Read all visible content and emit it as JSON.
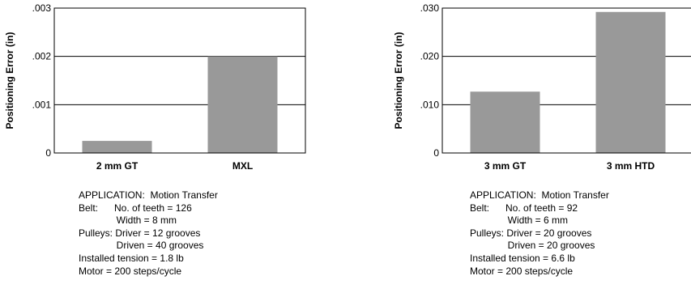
{
  "chart_data": [
    {
      "type": "bar",
      "title": "",
      "xlabel": "",
      "ylabel": "Positioning Error (in)",
      "categories": [
        "2 mm GT",
        "MXL"
      ],
      "values": [
        0.00025,
        0.002
      ],
      "ylim": [
        0,
        0.003
      ],
      "yticks": [
        0,
        0.001,
        0.002,
        0.003
      ],
      "ytick_labels": [
        "0",
        ".001",
        ".002",
        ".003"
      ],
      "grid": true,
      "bar_color": "#999999",
      "notes": [
        "APPLICATION:  Motion Transfer",
        "Belt:      No. of teeth = 126",
        "              Width = 8 mm",
        "Pulleys: Driver = 12 grooves",
        "              Driven = 40 grooves",
        "Installed tension = 1.8 lb",
        "Motor = 200 steps/cycle"
      ]
    },
    {
      "type": "bar",
      "title": "",
      "xlabel": "",
      "ylabel": "Positioning Error (in)",
      "categories": [
        "3 mm GT",
        "3 mm HTD"
      ],
      "values": [
        0.0127,
        0.0292
      ],
      "ylim": [
        0,
        0.03
      ],
      "yticks": [
        0,
        0.01,
        0.02,
        0.03
      ],
      "ytick_labels": [
        "0",
        ".010",
        ".020",
        ".030"
      ],
      "grid": true,
      "bar_color": "#999999",
      "notes": [
        "APPLICATION:  Motion Transfer",
        "Belt:      No. of teeth = 92",
        "              Width = 6 mm",
        "Pulleys: Driver = 20 grooves",
        "              Driven = 20 grooves",
        "Installed tension = 6.6 lb",
        "Motor = 200 steps/cycle"
      ]
    }
  ]
}
